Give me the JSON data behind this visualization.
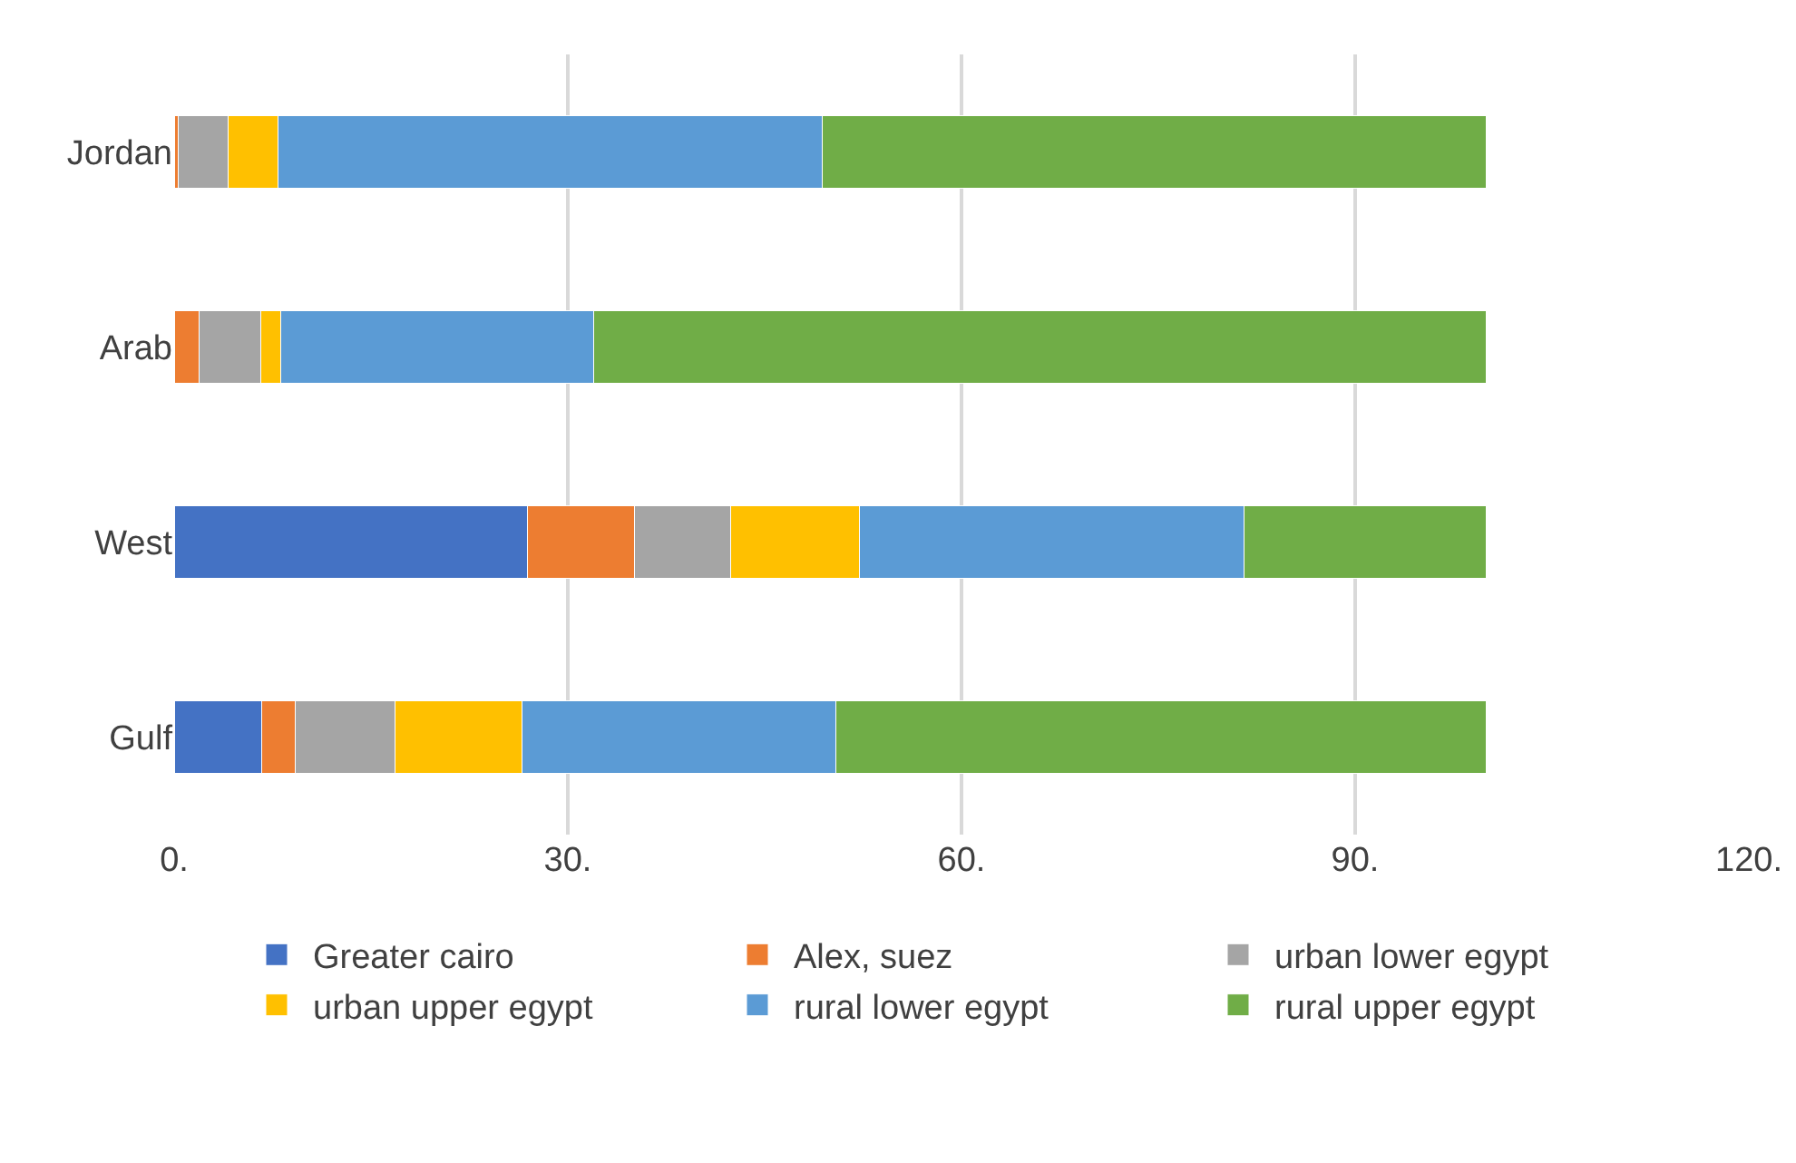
{
  "chart_data": {
    "type": "bar",
    "orientation": "horizontal",
    "stacked": true,
    "categories": [
      "Jordan",
      "Arab",
      "West",
      "Gulf"
    ],
    "series": [
      {
        "name": "Greater cairo",
        "color": "#4472c4",
        "values": [
          0,
          0,
          26.9,
          6.7
        ]
      },
      {
        "name": "Alex, suez",
        "color": "#ed7d31",
        "values": [
          0.3,
          1.9,
          8.2,
          2.5
        ]
      },
      {
        "name": "urban lower egypt",
        "color": "#a5a5a5",
        "values": [
          3.8,
          4.7,
          7.3,
          7.6
        ]
      },
      {
        "name": "urban upper egypt",
        "color": "#ffc000",
        "values": [
          3.8,
          1.5,
          9.8,
          9.7
        ]
      },
      {
        "name": "rural lower egypt",
        "color": "#5b9bd5",
        "values": [
          41.5,
          23.9,
          29.3,
          23.9
        ]
      },
      {
        "name": "rural upper egypt",
        "color": "#70ad47",
        "values": [
          50.6,
          68.0,
          18.5,
          49.6
        ]
      }
    ],
    "xlim": [
      0,
      120
    ],
    "xticks": [
      {
        "value": 0,
        "label": "0."
      },
      {
        "value": 30,
        "label": "30."
      },
      {
        "value": 60,
        "label": "60."
      },
      {
        "value": 90,
        "label": "90."
      },
      {
        "value": 120,
        "label": "120."
      }
    ],
    "grid": "x",
    "legend": "bottom"
  }
}
